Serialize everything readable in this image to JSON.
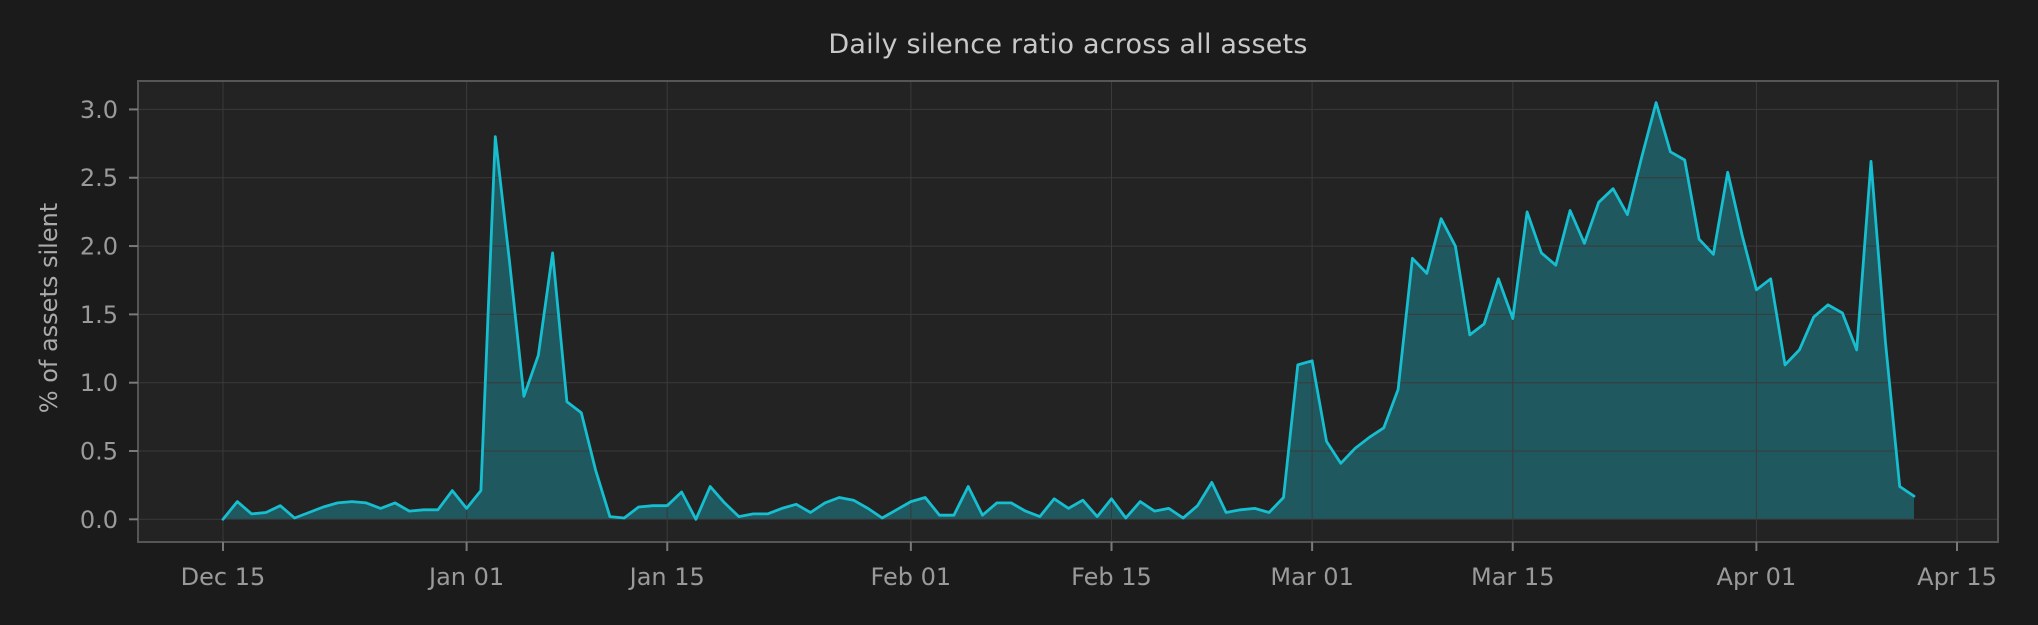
{
  "chart_data": {
    "type": "area",
    "title": "Daily silence ratio across all assets",
    "xlabel": "",
    "ylabel": "% of assets silent",
    "legend": false,
    "grid": true,
    "x_tick_labels": [
      "Dec 15",
      "Jan 01",
      "Jan 15",
      "Feb 01",
      "Feb 15",
      "Mar 01",
      "Mar 15",
      "Apr 01",
      "Apr 15"
    ],
    "x_tick_day_offsets": [
      0,
      17,
      31,
      48,
      62,
      76,
      90,
      107,
      121
    ],
    "y_ticks": [
      0.0,
      0.5,
      1.0,
      1.5,
      2.0,
      2.5,
      3.0
    ],
    "ylim": [
      -0.166,
      3.208
    ],
    "xlim_days": [
      -5.93,
      123.86
    ],
    "dates": [
      "Dec 15",
      "Dec 16",
      "Dec 17",
      "Dec 18",
      "Dec 19",
      "Dec 20",
      "Dec 21",
      "Dec 22",
      "Dec 23",
      "Dec 24",
      "Dec 25",
      "Dec 26",
      "Dec 27",
      "Dec 28",
      "Dec 29",
      "Dec 30",
      "Dec 31",
      "Jan 01",
      "Jan 02",
      "Jan 03",
      "Jan 04",
      "Jan 05",
      "Jan 06",
      "Jan 07",
      "Jan 08",
      "Jan 09",
      "Jan 10",
      "Jan 11",
      "Jan 12",
      "Jan 13",
      "Jan 14",
      "Jan 15",
      "Jan 16",
      "Jan 17",
      "Jan 18",
      "Jan 19",
      "Jan 20",
      "Jan 21",
      "Jan 22",
      "Jan 23",
      "Jan 24",
      "Jan 25",
      "Jan 26",
      "Jan 27",
      "Jan 28",
      "Jan 29",
      "Jan 30",
      "Jan 31",
      "Feb 01",
      "Feb 02",
      "Feb 03",
      "Feb 04",
      "Feb 05",
      "Feb 06",
      "Feb 07",
      "Feb 08",
      "Feb 09",
      "Feb 10",
      "Feb 11",
      "Feb 12",
      "Feb 13",
      "Feb 14",
      "Feb 15",
      "Feb 16",
      "Feb 17",
      "Feb 18",
      "Feb 19",
      "Feb 20",
      "Feb 21",
      "Feb 22",
      "Feb 23",
      "Feb 24",
      "Feb 25",
      "Feb 26",
      "Feb 27",
      "Feb 28",
      "Mar 01",
      "Mar 02",
      "Mar 03",
      "Mar 04",
      "Mar 05",
      "Mar 06",
      "Mar 07",
      "Mar 08",
      "Mar 09",
      "Mar 10",
      "Mar 11",
      "Mar 12",
      "Mar 13",
      "Mar 14",
      "Mar 15",
      "Mar 16",
      "Mar 17",
      "Mar 18",
      "Mar 19",
      "Mar 20",
      "Mar 21",
      "Mar 22",
      "Mar 23",
      "Mar 24",
      "Mar 25",
      "Mar 26",
      "Mar 27",
      "Mar 28",
      "Mar 29",
      "Mar 30",
      "Mar 31",
      "Apr 01",
      "Apr 02",
      "Apr 03",
      "Apr 04",
      "Apr 05",
      "Apr 06",
      "Apr 07",
      "Apr 08",
      "Apr 09",
      "Apr 10",
      "Apr 11",
      "Apr 12"
    ],
    "values": [
      0.0,
      0.13,
      0.04,
      0.05,
      0.1,
      0.01,
      0.05,
      0.09,
      0.12,
      0.13,
      0.12,
      0.08,
      0.12,
      0.06,
      0.07,
      0.07,
      0.21,
      0.08,
      0.21,
      2.8,
      1.88,
      0.9,
      1.2,
      1.95,
      0.86,
      0.78,
      0.36,
      0.02,
      0.01,
      0.09,
      0.1,
      0.1,
      0.2,
      0.0,
      0.24,
      0.12,
      0.02,
      0.04,
      0.04,
      0.08,
      0.11,
      0.05,
      0.12,
      0.16,
      0.14,
      0.08,
      0.01,
      0.07,
      0.13,
      0.16,
      0.03,
      0.03,
      0.24,
      0.03,
      0.12,
      0.12,
      0.06,
      0.02,
      0.15,
      0.08,
      0.14,
      0.02,
      0.15,
      0.01,
      0.13,
      0.06,
      0.08,
      0.01,
      0.1,
      0.27,
      0.05,
      0.07,
      0.08,
      0.05,
      0.16,
      1.13,
      1.16,
      0.57,
      0.41,
      0.52,
      0.6,
      0.67,
      0.95,
      1.91,
      1.8,
      2.2,
      2.0,
      1.35,
      1.43,
      1.76,
      1.47,
      2.25,
      1.95,
      1.86,
      2.26,
      2.02,
      2.32,
      2.42,
      2.23,
      2.65,
      3.05,
      2.69,
      2.63,
      2.05,
      1.94,
      2.54,
      2.08,
      1.68,
      1.76,
      1.13,
      1.24,
      1.48,
      1.57,
      1.51,
      1.24,
      2.62,
      1.3,
      0.24,
      0.17
    ],
    "colors": {
      "line": "#17becf",
      "fill": "rgba(23,190,207,0.34)",
      "figure_bg": "#1b1b1b",
      "plot_bg": "#232323",
      "grid": "#3a3a3a",
      "spine": "#565656",
      "tick_mark": "#7a7a7a",
      "tick_label": "#9a9a9a",
      "title": "#c9c9c9",
      "axis_label": "#ababab"
    }
  }
}
